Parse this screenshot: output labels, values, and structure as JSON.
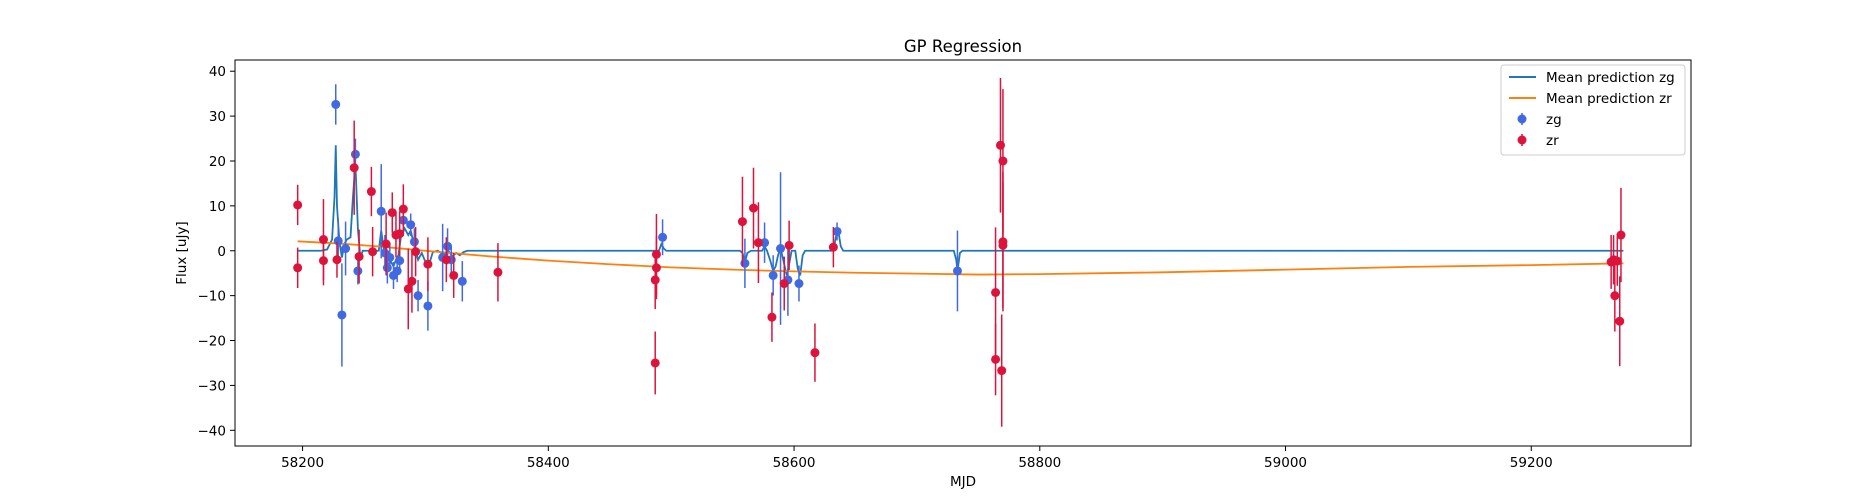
{
  "chart_data": {
    "type": "scatter",
    "title": "GP Regression",
    "xlabel": "MJD",
    "ylabel": "Flux [uJy]",
    "xlim": [
      58145,
      59330
    ],
    "ylim": [
      -43.5,
      42.5
    ],
    "xticks": [
      58200,
      58400,
      58600,
      58800,
      59000,
      59200
    ],
    "yticks": [
      -40,
      -30,
      -20,
      -10,
      0,
      10,
      20,
      30,
      40
    ],
    "grid": false,
    "legend": "top-right",
    "colors": {
      "zg_line": "#1f77b4",
      "zr_line": "#ff7f0e",
      "zg_points": "#4169e1",
      "zr_points": "#dc143c"
    },
    "legend_entries": [
      {
        "label": "Mean prediction zg",
        "kind": "line",
        "color": "#1f77b4"
      },
      {
        "label": "Mean prediction zr",
        "kind": "line",
        "color": "#ff7f0e"
      },
      {
        "label": "zg",
        "kind": "errorbar",
        "color": "#4169e1"
      },
      {
        "label": "zr",
        "kind": "errorbar",
        "color": "#dc143c"
      }
    ],
    "series": [
      {
        "name": "zg",
        "kind": "errorbar",
        "points": [
          {
            "x": 58227,
            "y": 32.6,
            "err": 4.5
          },
          {
            "x": 58229,
            "y": 2.2,
            "err": 5.0
          },
          {
            "x": 58232,
            "y": -14.3,
            "err": 11.5
          },
          {
            "x": 58235,
            "y": 0.5,
            "err": 6.0
          },
          {
            "x": 58243,
            "y": 21.5,
            "err": 3.5
          },
          {
            "x": 58245,
            "y": -4.5,
            "err": 3.0
          },
          {
            "x": 58264,
            "y": 8.8,
            "err": 10.5
          },
          {
            "x": 58267,
            "y": -0.5,
            "err": 4.0
          },
          {
            "x": 58269,
            "y": -3.8,
            "err": 3.5
          },
          {
            "x": 58271,
            "y": -1.5,
            "err": 3.0
          },
          {
            "x": 58274,
            "y": -5.5,
            "err": 3.0
          },
          {
            "x": 58277,
            "y": -4.5,
            "err": 2.5
          },
          {
            "x": 58279,
            "y": -2.2,
            "err": 3.0
          },
          {
            "x": 58282,
            "y": 6.8,
            "err": 3.5
          },
          {
            "x": 58288,
            "y": 5.8,
            "err": 2.5
          },
          {
            "x": 58291,
            "y": 2.0,
            "err": 3.0
          },
          {
            "x": 58294,
            "y": -10.0,
            "err": 3.5
          },
          {
            "x": 58302,
            "y": -12.3,
            "err": 5.5
          },
          {
            "x": 58314,
            "y": -1.5,
            "err": 7.5
          },
          {
            "x": 58318,
            "y": 1.0,
            "err": 4.0
          },
          {
            "x": 58321,
            "y": -2.0,
            "err": 3.0
          },
          {
            "x": 58330,
            "y": -6.8,
            "err": 4.5
          },
          {
            "x": 58493,
            "y": 3.0,
            "err": 4.0
          },
          {
            "x": 58560,
            "y": -2.8,
            "err": 5.5
          },
          {
            "x": 58576,
            "y": 1.8,
            "err": 4.5
          },
          {
            "x": 58583,
            "y": -5.5,
            "err": 4.5
          },
          {
            "x": 58589,
            "y": 0.5,
            "err": 17.0
          },
          {
            "x": 58595,
            "y": -6.5,
            "err": 8.0
          },
          {
            "x": 58604,
            "y": -7.3,
            "err": 4.0
          },
          {
            "x": 58635,
            "y": 4.3,
            "err": 2.0
          },
          {
            "x": 58733,
            "y": -4.5,
            "err": 9.0
          }
        ]
      },
      {
        "name": "zr",
        "kind": "errorbar",
        "points": [
          {
            "x": 58196,
            "y": 10.2,
            "err": 4.5
          },
          {
            "x": 58196,
            "y": -3.8,
            "err": 4.5
          },
          {
            "x": 58217,
            "y": 2.5,
            "err": 9.0
          },
          {
            "x": 58217,
            "y": -2.2,
            "err": 5.5
          },
          {
            "x": 58228,
            "y": -2.0,
            "err": 4.0
          },
          {
            "x": 58242,
            "y": 18.5,
            "err": 10.5
          },
          {
            "x": 58246,
            "y": -1.3,
            "err": 6.0
          },
          {
            "x": 58256,
            "y": 13.2,
            "err": 5.5
          },
          {
            "x": 58257,
            "y": -0.2,
            "err": 5.5
          },
          {
            "x": 58268,
            "y": 1.5,
            "err": 7.0
          },
          {
            "x": 58273,
            "y": 8.5,
            "err": 4.5
          },
          {
            "x": 58276,
            "y": 3.5,
            "err": 5.0
          },
          {
            "x": 58279,
            "y": 3.8,
            "err": 5.0
          },
          {
            "x": 58282,
            "y": 9.3,
            "err": 5.5
          },
          {
            "x": 58286,
            "y": -8.5,
            "err": 9.0
          },
          {
            "x": 58289,
            "y": -6.8,
            "err": 7.0
          },
          {
            "x": 58292,
            "y": -0.2,
            "err": 5.5
          },
          {
            "x": 58302,
            "y": -3.0,
            "err": 6.0
          },
          {
            "x": 58317,
            "y": -2.0,
            "err": 5.0
          },
          {
            "x": 58323,
            "y": -5.5,
            "err": 5.0
          },
          {
            "x": 58359,
            "y": -4.8,
            "err": 6.5
          },
          {
            "x": 58487,
            "y": -25.0,
            "err": 7.0
          },
          {
            "x": 58487,
            "y": -6.5,
            "err": 6.5
          },
          {
            "x": 58488,
            "y": -3.8,
            "err": 7.0
          },
          {
            "x": 58488,
            "y": -0.8,
            "err": 9.0
          },
          {
            "x": 58558,
            "y": 6.5,
            "err": 10.0
          },
          {
            "x": 58567,
            "y": 9.5,
            "err": 9.0
          },
          {
            "x": 58571,
            "y": 1.8,
            "err": 9.0
          },
          {
            "x": 58582,
            "y": -14.8,
            "err": 5.5
          },
          {
            "x": 58592,
            "y": -7.3,
            "err": 6.0
          },
          {
            "x": 58596,
            "y": 1.2,
            "err": 5.5
          },
          {
            "x": 58617,
            "y": -22.7,
            "err": 6.5
          },
          {
            "x": 58632,
            "y": 0.8,
            "err": 4.5
          },
          {
            "x": 58764,
            "y": -9.3,
            "err": 14.5
          },
          {
            "x": 58764,
            "y": -24.2,
            "err": 8.0
          },
          {
            "x": 58768,
            "y": 23.5,
            "err": 15.0
          },
          {
            "x": 58769,
            "y": -26.7,
            "err": 12.5
          },
          {
            "x": 58770,
            "y": 20.0,
            "err": 16.0
          },
          {
            "x": 58770,
            "y": 2.0,
            "err": 15.5
          },
          {
            "x": 58770,
            "y": 1.2,
            "err": 14.0
          },
          {
            "x": 59265,
            "y": -2.5,
            "err": 6.0
          },
          {
            "x": 59267,
            "y": -2.0,
            "err": 5.5
          },
          {
            "x": 59268,
            "y": -10.0,
            "err": 8.0
          },
          {
            "x": 59270,
            "y": -2.3,
            "err": 5.5
          },
          {
            "x": 59272,
            "y": -15.7,
            "err": 10.0
          },
          {
            "x": 59273,
            "y": 3.5,
            "err": 10.5
          }
        ]
      },
      {
        "name": "Mean prediction zg",
        "kind": "line",
        "points": [
          [
            58196,
            0
          ],
          [
            58215,
            0
          ],
          [
            58220,
            0.3
          ],
          [
            58224,
            2.5
          ],
          [
            58226,
            12
          ],
          [
            58227,
            23.5
          ],
          [
            58228,
            10
          ],
          [
            58230,
            2
          ],
          [
            58232,
            -1.5
          ],
          [
            58234,
            1.5
          ],
          [
            58236,
            2.5
          ],
          [
            58239,
            3
          ],
          [
            58241,
            12
          ],
          [
            58243,
            19.5
          ],
          [
            58245,
            5
          ],
          [
            58247,
            -1.5
          ],
          [
            58249,
            0
          ],
          [
            58262,
            0
          ],
          [
            58264,
            4.5
          ],
          [
            58266,
            0.5
          ],
          [
            58268,
            -2
          ],
          [
            58270,
            -3
          ],
          [
            58272,
            -2.5
          ],
          [
            58274,
            -3.5
          ],
          [
            58276,
            -2
          ],
          [
            58278,
            -1
          ],
          [
            58280,
            3
          ],
          [
            58283,
            5
          ],
          [
            58286,
            3.5
          ],
          [
            58288,
            4.5
          ],
          [
            58291,
            1
          ],
          [
            58294,
            -2
          ],
          [
            58297,
            -0.5
          ],
          [
            58300,
            -2.5
          ],
          [
            58303,
            -3
          ],
          [
            58306,
            -0.3
          ],
          [
            58310,
            0
          ],
          [
            58313,
            -0.5
          ],
          [
            58316,
            -0.8
          ],
          [
            58319,
            -0.2
          ],
          [
            58322,
            -1.2
          ],
          [
            58325,
            -0.5
          ],
          [
            58328,
            -1.0
          ],
          [
            58331,
            -0.3
          ],
          [
            58334,
            0
          ],
          [
            58490,
            0
          ],
          [
            58492,
            1.5
          ],
          [
            58494,
            0.5
          ],
          [
            58496,
            0
          ],
          [
            58556,
            0
          ],
          [
            58558,
            -0.5
          ],
          [
            58560,
            -2.5
          ],
          [
            58562,
            -0.5
          ],
          [
            58565,
            0
          ],
          [
            58574,
            0
          ],
          [
            58576,
            1
          ],
          [
            58578,
            0
          ],
          [
            58581,
            -2.5
          ],
          [
            58583,
            -4.5
          ],
          [
            58585,
            -3.5
          ],
          [
            58587,
            -1
          ],
          [
            58589,
            0.5
          ],
          [
            58592,
            -3
          ],
          [
            58594,
            -5.5
          ],
          [
            58596,
            -3
          ],
          [
            58598,
            0
          ],
          [
            58601,
            0
          ],
          [
            58603,
            -4
          ],
          [
            58605,
            -5.5
          ],
          [
            58607,
            -1
          ],
          [
            58609,
            0
          ],
          [
            58632,
            0
          ],
          [
            58634,
            3
          ],
          [
            58636,
            4.5
          ],
          [
            58638,
            1
          ],
          [
            58640,
            0
          ],
          [
            58730,
            0
          ],
          [
            58732,
            -2
          ],
          [
            58733,
            -4.5
          ],
          [
            58735,
            -0.5
          ],
          [
            58737,
            0
          ],
          [
            59275,
            0
          ]
        ]
      },
      {
        "name": "Mean prediction zr",
        "kind": "line",
        "points": [
          [
            58196,
            2.1
          ],
          [
            58230,
            1.6
          ],
          [
            58260,
            1.0
          ],
          [
            58300,
            0.0
          ],
          [
            58350,
            -1.2
          ],
          [
            58400,
            -2.2
          ],
          [
            58450,
            -3.0
          ],
          [
            58500,
            -3.7
          ],
          [
            58550,
            -4.2
          ],
          [
            58600,
            -4.6
          ],
          [
            58650,
            -4.9
          ],
          [
            58700,
            -5.1
          ],
          [
            58750,
            -5.3
          ],
          [
            58800,
            -5.2
          ],
          [
            58900,
            -4.8
          ],
          [
            59000,
            -4.2
          ],
          [
            59100,
            -3.6
          ],
          [
            59200,
            -3.2
          ],
          [
            59275,
            -2.8
          ]
        ]
      }
    ]
  }
}
